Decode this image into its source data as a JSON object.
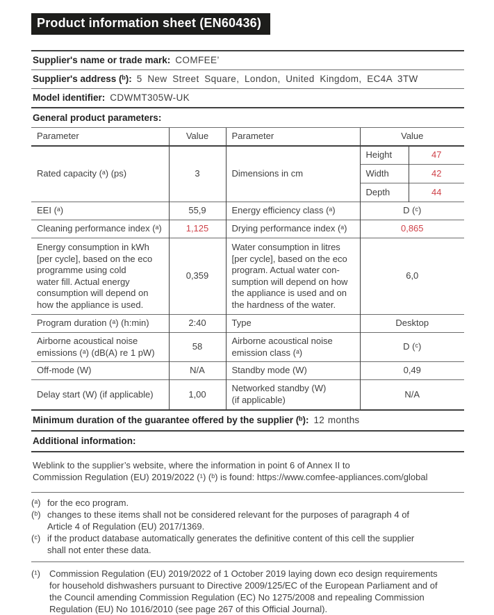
{
  "title": "Product information sheet (EN60436)",
  "colors": {
    "accent-red": "#cf4249",
    "bar-bg": "#1d1d1b"
  },
  "supplier": {
    "name_label": "Supplier's name or trade mark:",
    "name_value": "COMFEE’",
    "address_label": "Supplier's address (ᵇ):",
    "address_value": "5 New Street Square, London, United Kingdom, EC4A 3TW",
    "model_label": "Model identifier:",
    "model_value": "CDWMT305W-UK"
  },
  "general_heading": "General product parameters:",
  "table": {
    "col_headers": [
      "Parameter",
      "Value",
      "Parameter",
      "Value"
    ],
    "capacity_row": {
      "p1": "Rated capacity (ᵃ) (ps)",
      "v1": "3",
      "p2": "Dimensions in cm",
      "dims": [
        {
          "label": "Height",
          "value": "47"
        },
        {
          "label": "Width",
          "value": "42"
        },
        {
          "label": "Depth",
          "value": "44"
        }
      ]
    },
    "rows": [
      {
        "p1": "EEI (ᵃ)",
        "v1": "55,9",
        "p2": "Energy efficiency class (ᵃ)",
        "v2": "D (ᶜ)"
      },
      {
        "p1": "Cleaning performance index (ᵃ)",
        "v1": "1,125",
        "p2": "Drying performance index (ᵃ)",
        "v2": "0,865"
      },
      {
        "p1": [
          "Energy consumption in kWh",
          "[per cycle], based on the eco",
          "programme using cold",
          "water fill. Actual energy",
          "consumption will depend on",
          "how the appliance is used."
        ],
        "v1": "0,359",
        "p2": [
          "Water consumption in litres",
          "[per cycle], based on the eco",
          "program. Actual water con-",
          "sumption will depend on how",
          "the appliance is used and on",
          "the hardness of the water."
        ],
        "v2": "6,0"
      },
      {
        "p1": "Program duration (ᵃ) (h:min)",
        "v1": "2:40",
        "p2": "Type",
        "v2": "Desktop"
      },
      {
        "p1": [
          "Airborne acoustical noise",
          "emissions (ᵃ) (dB(A) re 1 pW)"
        ],
        "v1": "58",
        "p2": [
          "Airborne acoustical noise",
          "emission class (ᵃ)"
        ],
        "v2": "D (ᶜ)"
      },
      {
        "p1": "Off-mode (W)",
        "v1": "N/A",
        "p2": "Standby mode (W)",
        "v2": "0,49"
      },
      {
        "p1": "Delay start (W) (if applicable)",
        "v1": "1,00",
        "p2": [
          "Networked standby (W)",
          "(if applicable)"
        ],
        "v2": "N/A"
      }
    ]
  },
  "guarantee": {
    "label": "Minimum duration of the guarantee offered by the supplier (ᵇ):",
    "value": "12 months"
  },
  "additional_heading": "Additional information:",
  "weblink_lines": [
    "Weblink to the supplier’s website, where the information in point 6 of Annex II to",
    "Commission Regulation (EU) 2019/2022 (¹) (ᵇ) is found: https://www.comfee-appliances.com/global"
  ],
  "footnotes": [
    {
      "marker": "(ᵃ)",
      "text": "for the eco program."
    },
    {
      "marker": "(ᵇ)",
      "text": [
        "changes to these items shall not be considered relevant for the purposes of paragraph 4 of",
        "Article 4 of Regulation (EU) 2017/1369."
      ]
    },
    {
      "marker": "(ᶜ)",
      "text": [
        "if the product database automatically generates the definitive content of this cell the supplier",
        "shall not enter these data."
      ]
    }
  ],
  "regulation_note": {
    "marker": "(¹)",
    "text": [
      "Commission Regulation (EU) 2019/2022 of 1 October 2019 laying down eco design requirements",
      "for household dishwashers pursuant to Directive 2009/125/EC of the European Parliament and of",
      "the Council amending Commission Regulation (EC) No 1275/2008 and repealing Commission",
      "Regulation (EU) No 1016/2010 (see page 267 of this Official Journal)."
    ]
  }
}
